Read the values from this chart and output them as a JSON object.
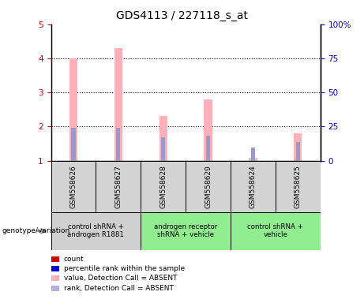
{
  "title": "GDS4113 / 227118_s_at",
  "samples": [
    "GSM558626",
    "GSM558627",
    "GSM558628",
    "GSM558629",
    "GSM558624",
    "GSM558625"
  ],
  "pink_bar_heights": [
    4.0,
    4.3,
    2.3,
    2.8,
    1.08,
    1.8
  ],
  "blue_bar_heights": [
    1.97,
    1.97,
    1.68,
    1.73,
    1.38,
    1.55
  ],
  "ylim_left": [
    1,
    5
  ],
  "ylim_right": [
    0,
    100
  ],
  "yticks_left": [
    1,
    2,
    3,
    4,
    5
  ],
  "yticks_right": [
    0,
    25,
    50,
    75,
    100
  ],
  "ytick_labels_right": [
    "0",
    "25",
    "50",
    "75",
    "100%"
  ],
  "pink_color": "#ffb0b8",
  "blue_color": "#9999cc",
  "bar_width": 0.18,
  "blue_bar_width": 0.09,
  "ylabel_left_color": "#cc0000",
  "ylabel_right_color": "#0000cc",
  "group_colors": [
    "#d0d0d0",
    "#90ee90",
    "#90ee90"
  ],
  "group_ranges": [
    [
      0,
      2
    ],
    [
      2,
      4
    ],
    [
      4,
      6
    ]
  ],
  "group_labels": [
    "control shRNA +\nandrogen R1881",
    "androgen receptor\nshRNA + vehicle",
    "control shRNA +\nvehicle"
  ],
  "sample_box_color": "#d3d3d3",
  "genotype_label": "genotype/variation",
  "legend_colors": [
    "#cc0000",
    "#0000cc",
    "#ffb0b8",
    "#b0b0dd"
  ],
  "legend_labels": [
    "count",
    "percentile rank within the sample",
    "value, Detection Call = ABSENT",
    "rank, Detection Call = ABSENT"
  ],
  "dotted_lines": [
    2,
    3,
    4
  ]
}
